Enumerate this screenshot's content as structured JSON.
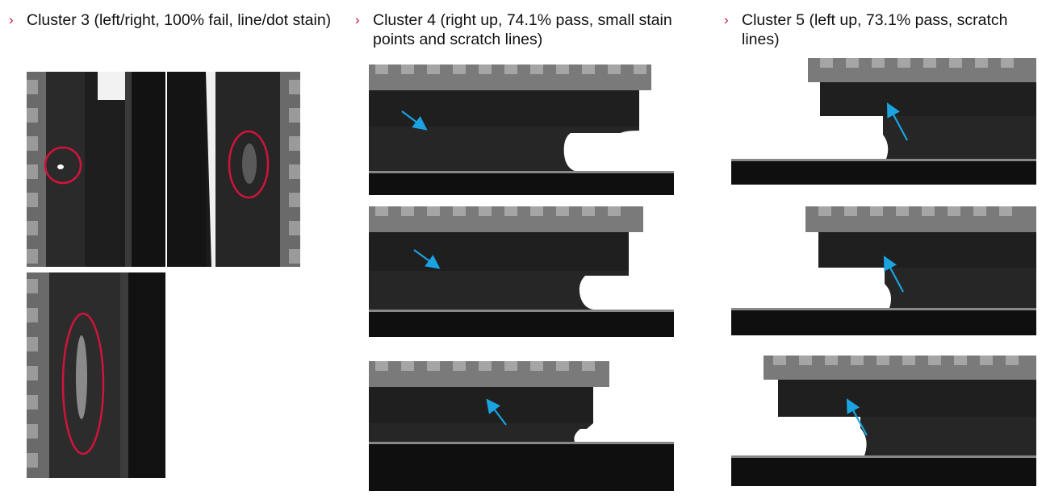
{
  "columns": [
    {
      "bullet": "›",
      "title": "Cluster 3 (left/right, 100% fail, line/dot stain)"
    },
    {
      "bullet": "›",
      "title": "Cluster 4 (right up, 74.1% pass, small stain points and scratch lines)"
    },
    {
      "bullet": "›",
      "title": "Cluster 5 (left up, 73.1% pass, scratch lines)"
    }
  ],
  "colors": {
    "bullet": "#c8102e",
    "defect_circle": "#d0143c",
    "arrow": "#1aa3e0",
    "die_dark": "#1b1b1b",
    "die_edge": "#888888"
  }
}
